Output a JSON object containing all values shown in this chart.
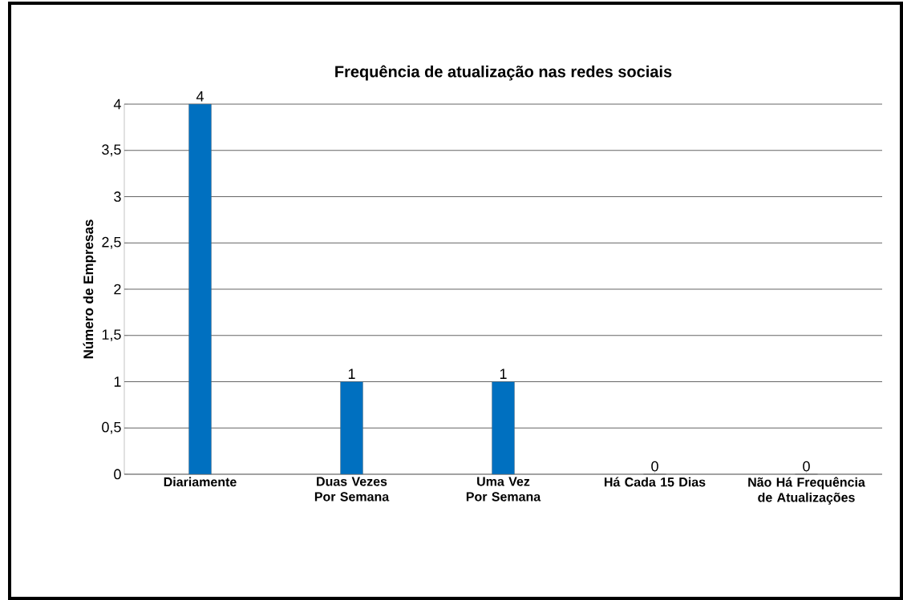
{
  "chart_data": {
    "type": "bar",
    "title": "Frequência de atualização nas redes sociais",
    "ylabel": "Número de Empresas",
    "categories": [
      "Diariamente",
      "Duas Vezes Por Semana",
      "Uma Vez Por Semana",
      "Há Cada 15 Dias",
      "Não Há Frequência de Atualizações"
    ],
    "values": [
      4,
      1,
      1,
      0,
      0
    ],
    "color": "#0070c0",
    "ylim": [
      0,
      4
    ],
    "yticks": [
      0,
      {
        "value": 0.5,
        "label": "0,5"
      },
      1,
      {
        "value": 1.5,
        "label": "1,5"
      },
      2,
      {
        "value": 2.5,
        "label": "2,5"
      },
      3,
      {
        "value": 3.5,
        "label": "3,5"
      },
      4
    ],
    "grid": "y",
    "data_labels": true
  }
}
